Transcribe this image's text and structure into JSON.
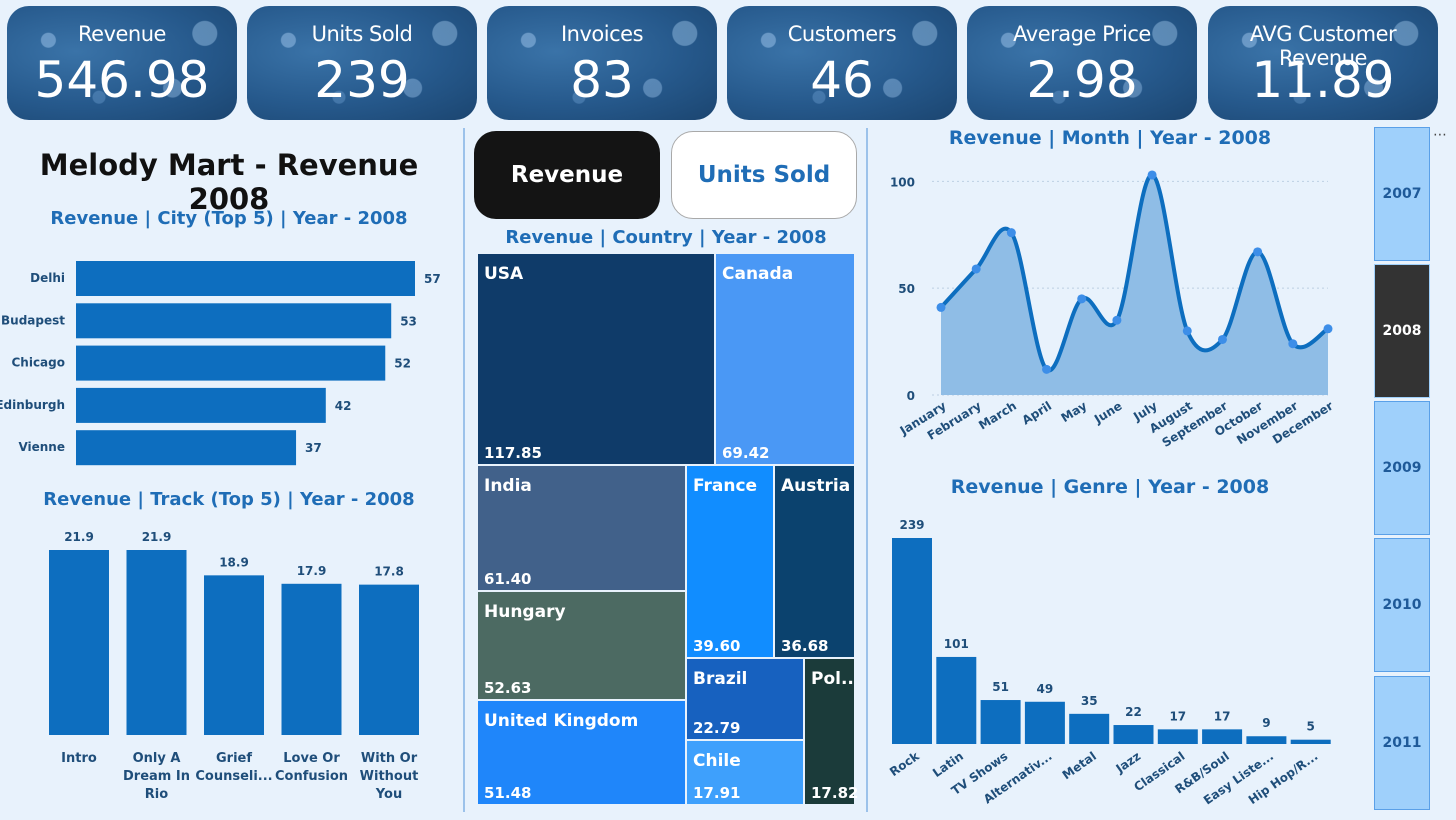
{
  "kpis": [
    {
      "label": "Revenue",
      "value": "546.98"
    },
    {
      "label": "Units Sold",
      "value": "239"
    },
    {
      "label": "Invoices",
      "value": "83"
    },
    {
      "label": "Customers",
      "value": "46"
    },
    {
      "label": "Average Price",
      "value": "2.98"
    },
    {
      "label": "AVG Customer Revenue",
      "value": "11.89"
    }
  ],
  "dashboard_title": "Melody Mart - Revenue 2008",
  "toggle": {
    "revenue_label": "Revenue",
    "units_label": "Units Sold"
  },
  "more_options_icon": "ellipsis-icon",
  "years": [
    "2007",
    "2008",
    "2009",
    "2010",
    "2011"
  ],
  "selected_year": "2008",
  "colors": {
    "bar": "#0d6ebf",
    "kpi_bg": "#26598c",
    "title_blue": "#1f6db6",
    "button_dark": "#141414",
    "area_fill": "#8fbde6",
    "line": "#0d6ebf"
  },
  "chart_data": [
    {
      "type": "bar",
      "orientation": "horizontal",
      "title": "Revenue | City (Top 5) | Year - 2008",
      "categories": [
        "Delhi",
        "Budapest",
        "Chicago",
        "Edinburgh",
        "Vienne"
      ],
      "values": [
        57,
        53,
        52,
        42,
        37
      ],
      "value_labels": [
        "57",
        "53",
        "52",
        "42",
        "37"
      ]
    },
    {
      "type": "bar",
      "title": "Revenue | Track (Top 5) | Year - 2008",
      "categories": [
        "Intro",
        "Only A Dream In Rio",
        "Grief Counseli...",
        "Love Or Confusion",
        "With Or Without You"
      ],
      "category_lines": [
        [
          "Intro"
        ],
        [
          "Only A",
          "Dream In",
          "Rio"
        ],
        [
          "Grief",
          "Counseli..."
        ],
        [
          "Love Or",
          "Confusion"
        ],
        [
          "With Or",
          "Without",
          "You"
        ]
      ],
      "values": [
        21.9,
        21.9,
        18.9,
        17.9,
        17.8
      ],
      "value_labels": [
        "21.9",
        "21.9",
        "18.9",
        "17.9",
        "17.8"
      ]
    },
    {
      "type": "treemap",
      "title": "Revenue | Country | Year - 2008",
      "items": [
        {
          "name": "USA",
          "value": 117.85,
          "label": "117.85",
          "color": "#0f3b69"
        },
        {
          "name": "Canada",
          "value": 69.42,
          "label": "69.42",
          "color": "#4a98f5"
        },
        {
          "name": "India",
          "value": 61.4,
          "label": "61.40",
          "color": "#41618a"
        },
        {
          "name": "France",
          "value": 39.6,
          "label": "39.60",
          "color": "#118dff"
        },
        {
          "name": "Austria",
          "value": 36.68,
          "label": "36.68",
          "color": "#0b426e"
        },
        {
          "name": "Hungary",
          "value": 52.63,
          "label": "52.63",
          "color": "#4c6a62"
        },
        {
          "name": "Brazil",
          "value": 22.79,
          "label": "22.79",
          "color": "#1761bf"
        },
        {
          "name": "Pol...",
          "value": 17.82,
          "label": "17.82",
          "color": "#1b3b3a"
        },
        {
          "name": "United Kingdom",
          "value": 51.48,
          "label": "51.48",
          "color": "#1f86fa"
        },
        {
          "name": "Chile",
          "value": 17.91,
          "label": "17.91",
          "color": "#3ea0fc"
        }
      ]
    },
    {
      "type": "area",
      "title": "Revenue | Month | Year - 2008",
      "categories": [
        "January",
        "February",
        "March",
        "April",
        "May",
        "June",
        "July",
        "August",
        "September",
        "October",
        "November",
        "December"
      ],
      "values": [
        41,
        59,
        76,
        12,
        45,
        35,
        103,
        30,
        26,
        67,
        24,
        31
      ],
      "ylim": [
        0,
        110
      ],
      "yticks": [
        0,
        50,
        100
      ],
      "grid": true
    },
    {
      "type": "bar",
      "title": "Revenue | Genre | Year - 2008",
      "categories": [
        "Rock",
        "Latin",
        "TV Shows",
        "Alternativ...",
        "Metal",
        "Jazz",
        "Classical",
        "R&B/Soul",
        "Easy Liste...",
        "Hip Hop/R..."
      ],
      "values": [
        239,
        101,
        51,
        49,
        35,
        22,
        17,
        17,
        9,
        5
      ],
      "value_labels": [
        "239",
        "101",
        "51",
        "49",
        "35",
        "22",
        "17",
        "17",
        "9",
        "5"
      ]
    }
  ]
}
